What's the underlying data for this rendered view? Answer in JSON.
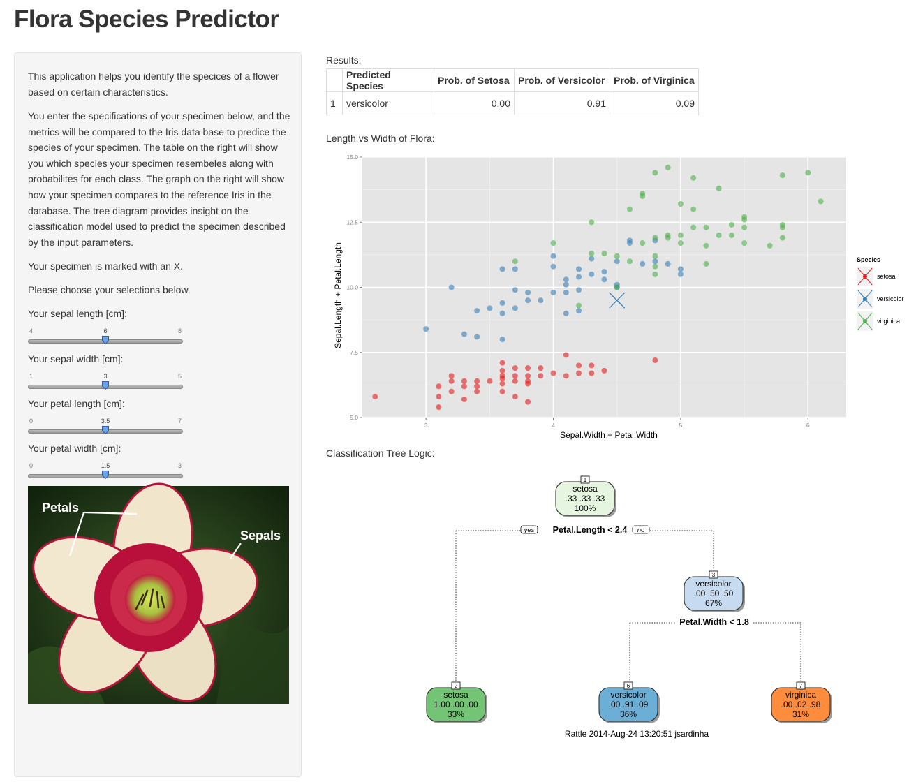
{
  "page_title": "Flora Species Predictor",
  "sidebar": {
    "paragraphs": [
      "This application helps you identify the specices of a flower based on certain characteristics.",
      "You enter the specifications of your specimen below, and the metrics will be compared to the Iris data base to predice the species of your specimen. The table on the right will show you which species your specimen resembeles along with probabilites for each class. The graph on the right will show how your specimen compares to the reference Iris in the database. The tree diagram provides insight on the classification model used to predict the specimen described by the input parameters.",
      "Your specimen is marked with an X.",
      "Please choose your selections below."
    ],
    "sliders": [
      {
        "label": "Your sepal length [cm]:",
        "min": 4,
        "max": 8,
        "value": 6,
        "value_label": "6",
        "min_label": "4",
        "max_label": "8"
      },
      {
        "label": "Your sepal width [cm]:",
        "min": 1,
        "max": 5,
        "value": 3,
        "value_label": "3",
        "min_label": "1",
        "max_label": "5"
      },
      {
        "label": "Your petal length [cm]:",
        "min": 0,
        "max": 7,
        "value": 3.5,
        "value_label": "3.5",
        "min_label": "0",
        "max_label": "7"
      },
      {
        "label": "Your petal width [cm]:",
        "min": 0,
        "max": 3,
        "value": 1.5,
        "value_label": "1.5",
        "min_label": "0",
        "max_label": "3"
      }
    ],
    "image": {
      "label_petals": "Petals",
      "label_sepals": "Sepals"
    }
  },
  "results": {
    "label": "Results:",
    "headers": [
      "",
      "Predicted Species",
      "Prob. of Setosa",
      "Prob. of Versicolor",
      "Prob. of Virginica"
    ],
    "rows": [
      [
        "1",
        "versicolor",
        "0.00",
        "0.91",
        "0.09"
      ]
    ]
  },
  "scatter_label": "Length vs Width of Flora:",
  "tree_label": "Classification Tree Logic:",
  "colors": {
    "setosa": "#e41a1c",
    "versicolor": "#377eb8",
    "virginica": "#4daf4a",
    "panel": "#e5e5e5"
  },
  "chart_data": {
    "type": "scatter",
    "xlabel": "Sepal.Width + Petal.Width",
    "ylabel": "Sepal.Length + Petal.Length",
    "xlim": [
      2.5,
      6.3
    ],
    "ylim": [
      5.0,
      15.0
    ],
    "xticks": [
      3,
      4,
      5,
      6
    ],
    "yticks": [
      5.0,
      7.5,
      10.0,
      12.5,
      15.0
    ],
    "xtick_labels": [
      "3",
      "4",
      "5",
      "6"
    ],
    "ytick_labels": [
      "5.0",
      "7.5",
      "10.0",
      "12.5",
      "15.0"
    ],
    "legend": {
      "title": "Species",
      "items": [
        "setosa",
        "versicolor",
        "virginica"
      ],
      "position": "right"
    },
    "specimen": {
      "x": 4.5,
      "y": 9.5,
      "marker": "X"
    },
    "series": [
      {
        "name": "setosa",
        "points": [
          [
            2.6,
            5.8
          ],
          [
            3.1,
            5.4
          ],
          [
            3.1,
            5.8
          ],
          [
            3.1,
            6.2
          ],
          [
            3.2,
            6.0
          ],
          [
            3.2,
            6.4
          ],
          [
            3.2,
            6.6
          ],
          [
            3.3,
            5.7
          ],
          [
            3.3,
            6.2
          ],
          [
            3.3,
            6.4
          ],
          [
            3.4,
            6.0
          ],
          [
            3.4,
            6.2
          ],
          [
            3.4,
            6.4
          ],
          [
            3.5,
            6.4
          ],
          [
            3.6,
            6.0
          ],
          [
            3.6,
            6.3
          ],
          [
            3.6,
            6.5
          ],
          [
            3.6,
            6.6
          ],
          [
            3.6,
            6.8
          ],
          [
            3.6,
            7.1
          ],
          [
            3.7,
            6.4
          ],
          [
            3.7,
            6.6
          ],
          [
            3.7,
            6.9
          ],
          [
            3.7,
            5.8
          ],
          [
            3.8,
            5.6
          ],
          [
            3.8,
            6.3
          ],
          [
            3.8,
            6.4
          ],
          [
            3.8,
            6.6
          ],
          [
            3.8,
            6.9
          ],
          [
            3.9,
            6.6
          ],
          [
            3.9,
            6.9
          ],
          [
            4.0,
            6.7
          ],
          [
            4.1,
            6.6
          ],
          [
            4.1,
            7.4
          ],
          [
            4.2,
            6.7
          ],
          [
            4.2,
            7.0
          ],
          [
            4.3,
            6.7
          ],
          [
            4.3,
            7.0
          ],
          [
            4.4,
            6.8
          ],
          [
            4.8,
            7.2
          ]
        ]
      },
      {
        "name": "versicolor",
        "points": [
          [
            3.0,
            8.4
          ],
          [
            3.2,
            10.0
          ],
          [
            3.3,
            8.2
          ],
          [
            3.4,
            8.1
          ],
          [
            3.4,
            9.1
          ],
          [
            3.5,
            9.2
          ],
          [
            3.6,
            8.0
          ],
          [
            3.6,
            9.0
          ],
          [
            3.6,
            9.4
          ],
          [
            3.6,
            10.7
          ],
          [
            3.7,
            9.2
          ],
          [
            3.7,
            9.9
          ],
          [
            3.7,
            10.7
          ],
          [
            3.8,
            9.5
          ],
          [
            3.8,
            9.8
          ],
          [
            3.9,
            9.5
          ],
          [
            4.0,
            9.8
          ],
          [
            4.0,
            10.8
          ],
          [
            4.0,
            11.2
          ],
          [
            4.1,
            9.0
          ],
          [
            4.1,
            9.8
          ],
          [
            4.1,
            10.1
          ],
          [
            4.1,
            10.3
          ],
          [
            4.2,
            9.1
          ],
          [
            4.2,
            9.9
          ],
          [
            4.2,
            10.4
          ],
          [
            4.2,
            10.7
          ],
          [
            4.3,
            10.5
          ],
          [
            4.3,
            11.1
          ],
          [
            4.4,
            10.3
          ],
          [
            4.4,
            10.6
          ],
          [
            4.5,
            10.0
          ],
          [
            4.5,
            10.1
          ],
          [
            4.5,
            11.0
          ],
          [
            4.6,
            11.7
          ],
          [
            4.6,
            11.8
          ],
          [
            4.7,
            10.9
          ],
          [
            4.8,
            11.0
          ],
          [
            4.8,
            11.8
          ],
          [
            4.9,
            10.9
          ],
          [
            5.0,
            10.5
          ],
          [
            5.0,
            10.7
          ]
        ]
      },
      {
        "name": "virginica",
        "points": [
          [
            4.0,
            11.7
          ],
          [
            3.7,
            11.0
          ],
          [
            4.2,
            9.3
          ],
          [
            4.3,
            12.5
          ],
          [
            4.3,
            11.3
          ],
          [
            4.4,
            11.3
          ],
          [
            4.5,
            11.2
          ],
          [
            4.5,
            10.0
          ],
          [
            4.6,
            11.0
          ],
          [
            4.6,
            13.0
          ],
          [
            4.7,
            13.5
          ],
          [
            4.7,
            13.6
          ],
          [
            4.7,
            11.7
          ],
          [
            4.8,
            11.2
          ],
          [
            4.8,
            11.9
          ],
          [
            4.8,
            10.8
          ],
          [
            4.8,
            10.5
          ],
          [
            4.8,
            14.4
          ],
          [
            4.9,
            14.6
          ],
          [
            4.9,
            11.9
          ],
          [
            4.9,
            12.0
          ],
          [
            5.0,
            13.2
          ],
          [
            5.0,
            12.0
          ],
          [
            5.0,
            11.7
          ],
          [
            5.1,
            14.2
          ],
          [
            5.1,
            13.0
          ],
          [
            5.1,
            12.3
          ],
          [
            5.2,
            12.3
          ],
          [
            5.2,
            11.6
          ],
          [
            5.2,
            10.9
          ],
          [
            5.3,
            13.8
          ],
          [
            5.3,
            12.0
          ],
          [
            5.4,
            12.4
          ],
          [
            5.4,
            12.0
          ],
          [
            5.5,
            12.7
          ],
          [
            5.5,
            12.6
          ],
          [
            5.5,
            12.3
          ],
          [
            5.5,
            11.7
          ],
          [
            5.7,
            11.6
          ],
          [
            5.8,
            12.4
          ],
          [
            5.8,
            12.3
          ],
          [
            5.8,
            11.9
          ],
          [
            5.8,
            14.3
          ],
          [
            6.0,
            14.4
          ],
          [
            6.1,
            13.3
          ]
        ]
      }
    ]
  },
  "tree": {
    "split1": "Petal.Length < 2.4",
    "split2": "Petal.Width < 1.8",
    "yes_label": "yes",
    "no_label": "no",
    "footer": "Rattle 2014-Aug-24 13:20:51 jsardinha",
    "nodes": [
      {
        "id": "1",
        "class": "setosa",
        "probs": ".33  .33  .33",
        "pct": "100%",
        "color": "#e5f5e0"
      },
      {
        "id": "3",
        "class": "versicolor",
        "probs": ".00  .50  .50",
        "pct": "67%",
        "color": "#c6dbef"
      },
      {
        "id": "2",
        "class": "setosa",
        "probs": "1.00  .00  .00",
        "pct": "33%",
        "color": "#74c476"
      },
      {
        "id": "6",
        "class": "versicolor",
        "probs": ".00  .91  .09",
        "pct": "36%",
        "color": "#6baed6"
      },
      {
        "id": "7",
        "class": "virginica",
        "probs": ".00  .02  .98",
        "pct": "31%",
        "color": "#fd8d3c"
      }
    ]
  }
}
